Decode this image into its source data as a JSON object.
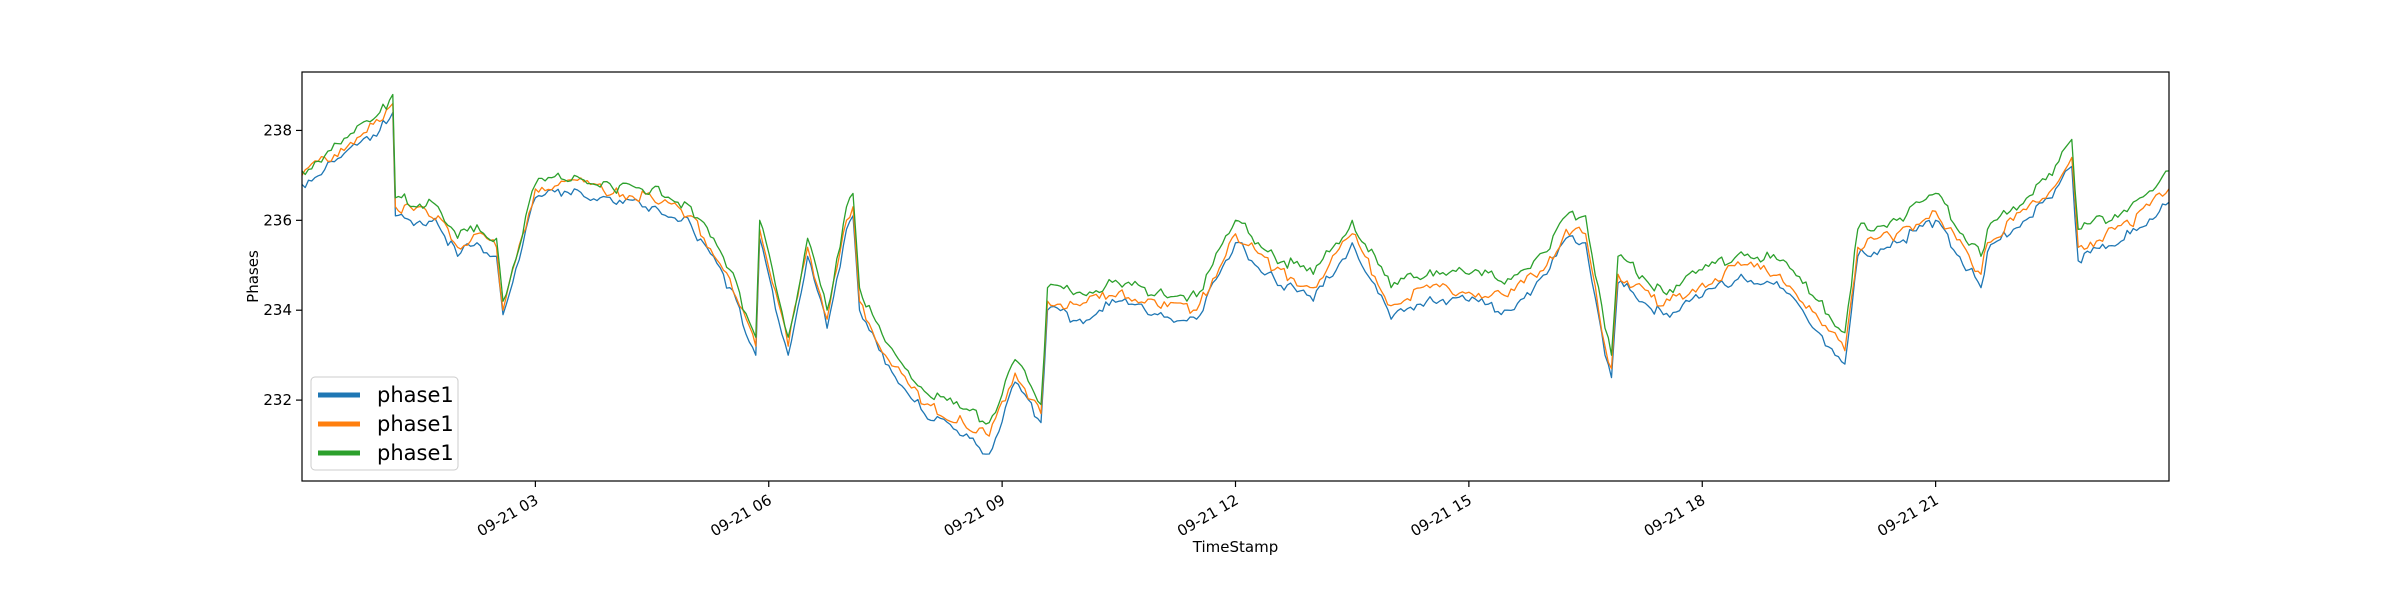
{
  "chart_data": {
    "type": "line",
    "title": "",
    "xlabel": "TimeStamp",
    "ylabel": "Phases",
    "xlim": [
      "2023-09-21 00:00",
      "2023-09-22 00:00"
    ],
    "ylim": [
      230.2,
      239.3
    ],
    "x_ticks": [
      {
        "value": "2023-09-21 03:00",
        "label": "09-21 03"
      },
      {
        "value": "2023-09-21 06:00",
        "label": "09-21 06"
      },
      {
        "value": "2023-09-21 09:00",
        "label": "09-21 09"
      },
      {
        "value": "2023-09-21 12:00",
        "label": "09-21 12"
      },
      {
        "value": "2023-09-21 15:00",
        "label": "09-21 15"
      },
      {
        "value": "2023-09-21 18:00",
        "label": "09-21 18"
      },
      {
        "value": "2023-09-21 21:00",
        "label": "09-21 21"
      }
    ],
    "y_ticks": [
      232,
      234,
      236,
      238
    ],
    "grid": false,
    "legend_position": "lower-left",
    "x": [
      "2023-09-21 00:00",
      "2023-09-21 00:30",
      "2023-09-21 01:00",
      "2023-09-21 01:10",
      "2023-09-21 01:12",
      "2023-09-21 01:45",
      "2023-09-21 02:00",
      "2023-09-21 02:15",
      "2023-09-21 02:30",
      "2023-09-21 02:35",
      "2023-09-21 03:00",
      "2023-09-21 03:30",
      "2023-09-21 04:00",
      "2023-09-21 04:30",
      "2023-09-21 05:00",
      "2023-09-21 05:30",
      "2023-09-21 05:50",
      "2023-09-21 05:53",
      "2023-09-21 06:15",
      "2023-09-21 06:30",
      "2023-09-21 06:45",
      "2023-09-21 07:00",
      "2023-09-21 07:05",
      "2023-09-21 07:10",
      "2023-09-21 07:30",
      "2023-09-21 08:00",
      "2023-09-21 08:30",
      "2023-09-21 08:50",
      "2023-09-21 09:10",
      "2023-09-21 09:30",
      "2023-09-21 09:35",
      "2023-09-21 10:00",
      "2023-09-21 10:30",
      "2023-09-21 11:00",
      "2023-09-21 11:30",
      "2023-09-21 12:00",
      "2023-09-21 12:30",
      "2023-09-21 13:00",
      "2023-09-21 13:30",
      "2023-09-21 14:00",
      "2023-09-21 14:30",
      "2023-09-21 15:00",
      "2023-09-21 15:30",
      "2023-09-21 16:00",
      "2023-09-21 16:15",
      "2023-09-21 16:30",
      "2023-09-21 16:45",
      "2023-09-21 16:50",
      "2023-09-21 16:55",
      "2023-09-21 17:30",
      "2023-09-21 18:00",
      "2023-09-21 18:30",
      "2023-09-21 19:00",
      "2023-09-21 19:30",
      "2023-09-21 19:50",
      "2023-09-21 20:00",
      "2023-09-21 20:30",
      "2023-09-21 21:00",
      "2023-09-21 21:35",
      "2023-09-21 21:40",
      "2023-09-21 22:00",
      "2023-09-21 22:30",
      "2023-09-21 22:45",
      "2023-09-21 22:50",
      "2023-09-21 23:30",
      "2023-09-22 00:00"
    ],
    "series": [
      {
        "name": "phase1",
        "color": "#1f77b4",
        "values": [
          236.8,
          237.4,
          238.0,
          238.4,
          236.1,
          235.9,
          235.2,
          235.5,
          235.2,
          233.9,
          236.5,
          236.7,
          236.4,
          236.3,
          235.9,
          234.5,
          233.0,
          235.6,
          233.0,
          235.2,
          233.6,
          235.8,
          236.1,
          234.0,
          232.8,
          231.7,
          231.2,
          230.8,
          232.4,
          231.5,
          234.0,
          233.8,
          234.2,
          233.9,
          233.8,
          235.5,
          234.7,
          234.2,
          235.5,
          233.8,
          234.3,
          234.2,
          234.0,
          234.8,
          235.6,
          235.5,
          233.0,
          232.5,
          234.6,
          233.9,
          234.3,
          234.8,
          234.5,
          233.5,
          232.8,
          235.2,
          235.5,
          236.0,
          234.5,
          235.3,
          235.8,
          236.5,
          237.2,
          235.1,
          235.7,
          236.4
        ]
      },
      {
        "name": "phase1",
        "color": "#ff7f0e",
        "values": [
          237.0,
          237.6,
          238.2,
          238.6,
          236.3,
          236.1,
          235.4,
          235.7,
          235.4,
          234.0,
          236.7,
          236.9,
          236.6,
          236.5,
          236.1,
          234.7,
          233.2,
          235.8,
          233.2,
          235.4,
          233.8,
          236.0,
          236.3,
          234.2,
          233.0,
          231.9,
          231.5,
          231.2,
          232.6,
          231.7,
          234.2,
          234.1,
          234.4,
          234.1,
          234.0,
          235.7,
          234.9,
          234.5,
          235.7,
          234.1,
          234.5,
          234.4,
          234.3,
          235.0,
          235.8,
          235.7,
          233.2,
          232.7,
          234.8,
          234.1,
          234.6,
          235.0,
          234.8,
          233.8,
          233.1,
          235.4,
          235.7,
          236.2,
          234.8,
          235.5,
          236.0,
          236.7,
          237.4,
          235.4,
          235.9,
          236.7
        ]
      },
      {
        "name": "phase1",
        "color": "#2ca02c",
        "values": [
          237.1,
          237.7,
          238.4,
          238.8,
          236.5,
          236.3,
          235.6,
          235.9,
          235.6,
          234.2,
          236.8,
          237.0,
          236.7,
          236.7,
          236.3,
          234.9,
          233.4,
          236.0,
          233.4,
          235.6,
          234.0,
          236.3,
          236.6,
          234.5,
          233.3,
          232.2,
          231.8,
          231.5,
          232.9,
          231.9,
          234.5,
          234.4,
          234.6,
          234.4,
          234.3,
          236.0,
          235.2,
          234.8,
          236.0,
          234.5,
          234.9,
          234.8,
          234.7,
          235.3,
          236.1,
          236.1,
          233.6,
          233.0,
          235.2,
          234.4,
          234.9,
          235.3,
          235.1,
          234.2,
          233.5,
          235.8,
          236.0,
          236.6,
          235.2,
          235.8,
          236.3,
          237.0,
          237.8,
          235.8,
          236.3,
          237.1
        ]
      }
    ]
  }
}
